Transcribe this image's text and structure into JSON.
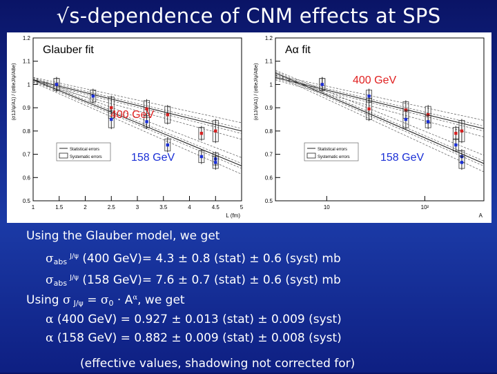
{
  "title": "√s-dependence of CNM effects at SPS",
  "chart_data": [
    {
      "type": "scatter",
      "panel": "glauber",
      "title": "Glauber fit",
      "xlabel": "L (fm)",
      "ylabel": "(σ1J/ψ/A1) / (σBeJ/ψ/ABe)",
      "xlim": [
        1,
        5.0
      ],
      "ylim": [
        0.5,
        1.2
      ],
      "x_ticks": [
        "1",
        "1.5",
        "2",
        "2.5",
        "3",
        "3.5",
        "4",
        "4.5",
        "5"
      ],
      "y_ticks": [
        "0.5",
        "0.6",
        "0.7",
        "0.8",
        "0.9",
        "1",
        "1.1",
        "1.2"
      ],
      "x_tick_values": [
        1,
        1.5,
        2,
        2.5,
        3,
        3.5,
        4,
        4.5,
        5
      ],
      "y_tick_values": [
        0.5,
        0.6,
        0.7,
        0.8,
        0.9,
        1.0,
        1.1,
        1.2
      ],
      "energy_labels": [
        "400 GeV",
        "158 GeV"
      ],
      "legend": [
        "Statistical errors",
        "Systematic errors"
      ],
      "series": [
        {
          "name": "400 GeV",
          "color": "#d42020",
          "points": [
            {
              "x": 1.45,
              "y": 1.0,
              "err": 0.02
            },
            {
              "x": 2.5,
              "y": 0.9,
              "err": 0.04
            },
            {
              "x": 3.18,
              "y": 0.895,
              "err": 0.03
            },
            {
              "x": 3.58,
              "y": 0.87,
              "err": 0.03
            },
            {
              "x": 4.23,
              "y": 0.79,
              "err": 0.02
            },
            {
              "x": 4.5,
              "y": 0.8,
              "err": 0.04
            }
          ]
        },
        {
          "name": "158 GeV",
          "color": "#1a2fd6",
          "points": [
            {
              "x": 1.45,
              "y": 1.0,
              "err": 0.02
            },
            {
              "x": 2.15,
              "y": 0.95,
              "err": 0.02
            },
            {
              "x": 2.5,
              "y": 0.85,
              "err": 0.03
            },
            {
              "x": 3.18,
              "y": 0.84,
              "err": 0.02
            },
            {
              "x": 3.58,
              "y": 0.74,
              "err": 0.02
            },
            {
              "x": 4.23,
              "y": 0.69,
              "err": 0.02
            },
            {
              "x": 4.5,
              "y": 0.68,
              "err": 0.02
            },
            {
              "x": 4.5,
              "y": 0.665,
              "err": 0.02
            }
          ]
        }
      ],
      "fit_curves": [
        {
          "name": "400 GeV fit",
          "x": [
            1.0,
            5.0
          ],
          "y": [
            1.02,
            0.8
          ]
        },
        {
          "name": "158 GeV fit",
          "x": [
            1.0,
            5.0
          ],
          "y": [
            1.02,
            0.65
          ]
        }
      ]
    },
    {
      "type": "scatter",
      "panel": "alpha",
      "title": "Aα fit",
      "xlabel": "A",
      "ylabel": "(σ1J/ψ/A1) / (σBeJ/ψ/ABe)",
      "xscale": "log",
      "xlim": [
        3,
        400
      ],
      "ylim": [
        0.5,
        1.2
      ],
      "x_ticks": [
        "10",
        "10²"
      ],
      "x_tick_values": [
        10,
        100
      ],
      "y_ticks": [
        "0.5",
        "0.6",
        "0.7",
        "0.8",
        "0.9",
        "1",
        "1.1",
        "1.2"
      ],
      "y_tick_values": [
        0.5,
        0.6,
        0.7,
        0.8,
        0.9,
        1.0,
        1.1,
        1.2
      ],
      "energy_labels": [
        "400 GeV",
        "158 GeV"
      ],
      "legend": [
        "Statistical errors",
        "Systematic errors"
      ],
      "series": [
        {
          "name": "400 GeV",
          "color": "#d42020",
          "points": [
            {
              "x": 9,
              "y": 1.0,
              "err": 0.02
            },
            {
              "x": 27,
              "y": 0.895,
              "err": 0.04
            },
            {
              "x": 64,
              "y": 0.89,
              "err": 0.03
            },
            {
              "x": 108,
              "y": 0.87,
              "err": 0.03
            },
            {
              "x": 207,
              "y": 0.79,
              "err": 0.02
            },
            {
              "x": 238,
              "y": 0.8,
              "err": 0.04
            }
          ]
        },
        {
          "name": "158 GeV",
          "color": "#1a2fd6",
          "points": [
            {
              "x": 9,
              "y": 1.0,
              "err": 0.02
            },
            {
              "x": 27,
              "y": 0.95,
              "err": 0.02
            },
            {
              "x": 64,
              "y": 0.85,
              "err": 0.03
            },
            {
              "x": 108,
              "y": 0.84,
              "err": 0.02
            },
            {
              "x": 207,
              "y": 0.74,
              "err": 0.02
            },
            {
              "x": 238,
              "y": 0.69,
              "err": 0.02
            },
            {
              "x": 238,
              "y": 0.665,
              "err": 0.02
            }
          ]
        }
      ],
      "fit_curves": [
        {
          "name": "400 GeV fit",
          "x": [
            3,
            400
          ],
          "y": [
            1.03,
            0.81
          ]
        },
        {
          "name": "158 GeV fit",
          "x": [
            3,
            400
          ],
          "y": [
            1.05,
            0.66
          ]
        }
      ]
    }
  ],
  "text": {
    "l1": "Using the Glauber model, we get",
    "sigma": "σ",
    "abs": "abs",
    "jpsi": "J/ψ",
    "l2_rest": " (400 GeV)= 4.3 ± 0.8 (stat) ± 0.6 (syst) mb",
    "l3_rest": " (158 GeV)= 7.6 ± 0.7 (stat) ± 0.6 (syst) mb",
    "l4_a": "Using ",
    "l4_eq": " = ",
    "zero": "0",
    "dot_a": " · A",
    "alpha": "α",
    "l4_b": ", we get",
    "l5_rest": " (400 GeV)  = 0.927 ± 0.013 (stat) ± 0.009 (syst)",
    "l6_rest": " (158 GeV)  = 0.882 ± 0.009 (stat) ± 0.008 (syst)",
    "l7": "(effective values, shadowing not corrected for)"
  }
}
